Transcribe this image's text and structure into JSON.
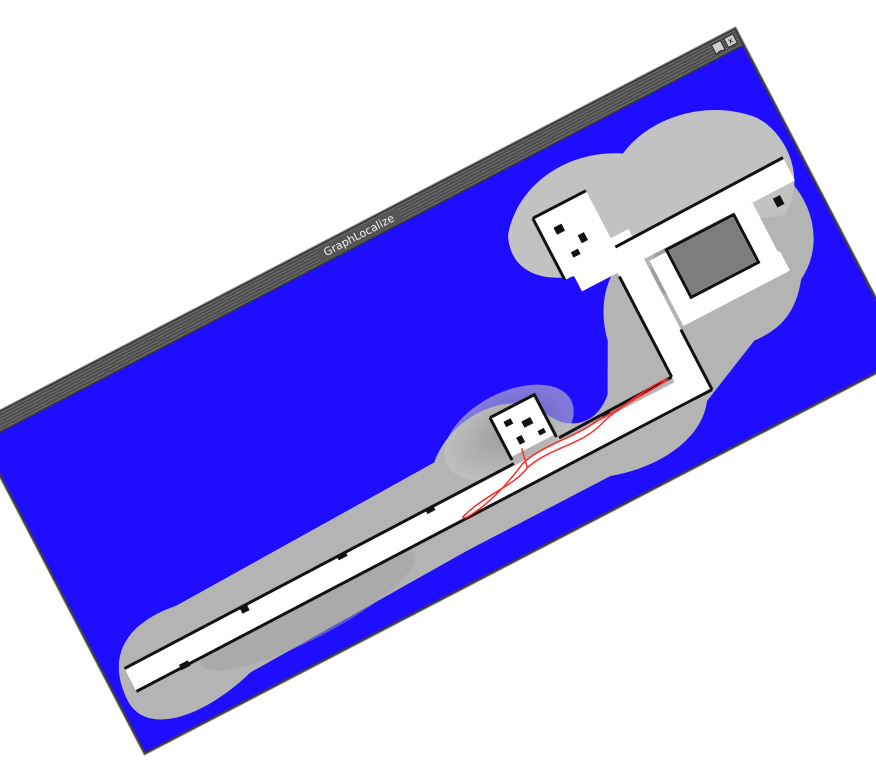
{
  "window": {
    "title": "GraphLocalize",
    "minimize_glyph": "_",
    "close_glyph": "x"
  },
  "colors": {
    "unknown_space": "#1f0dff",
    "free_space": "#ffffff",
    "obstacle": "#111111",
    "uncertain": "#a9a9a9",
    "trajectory": "#ff2a2a"
  }
}
